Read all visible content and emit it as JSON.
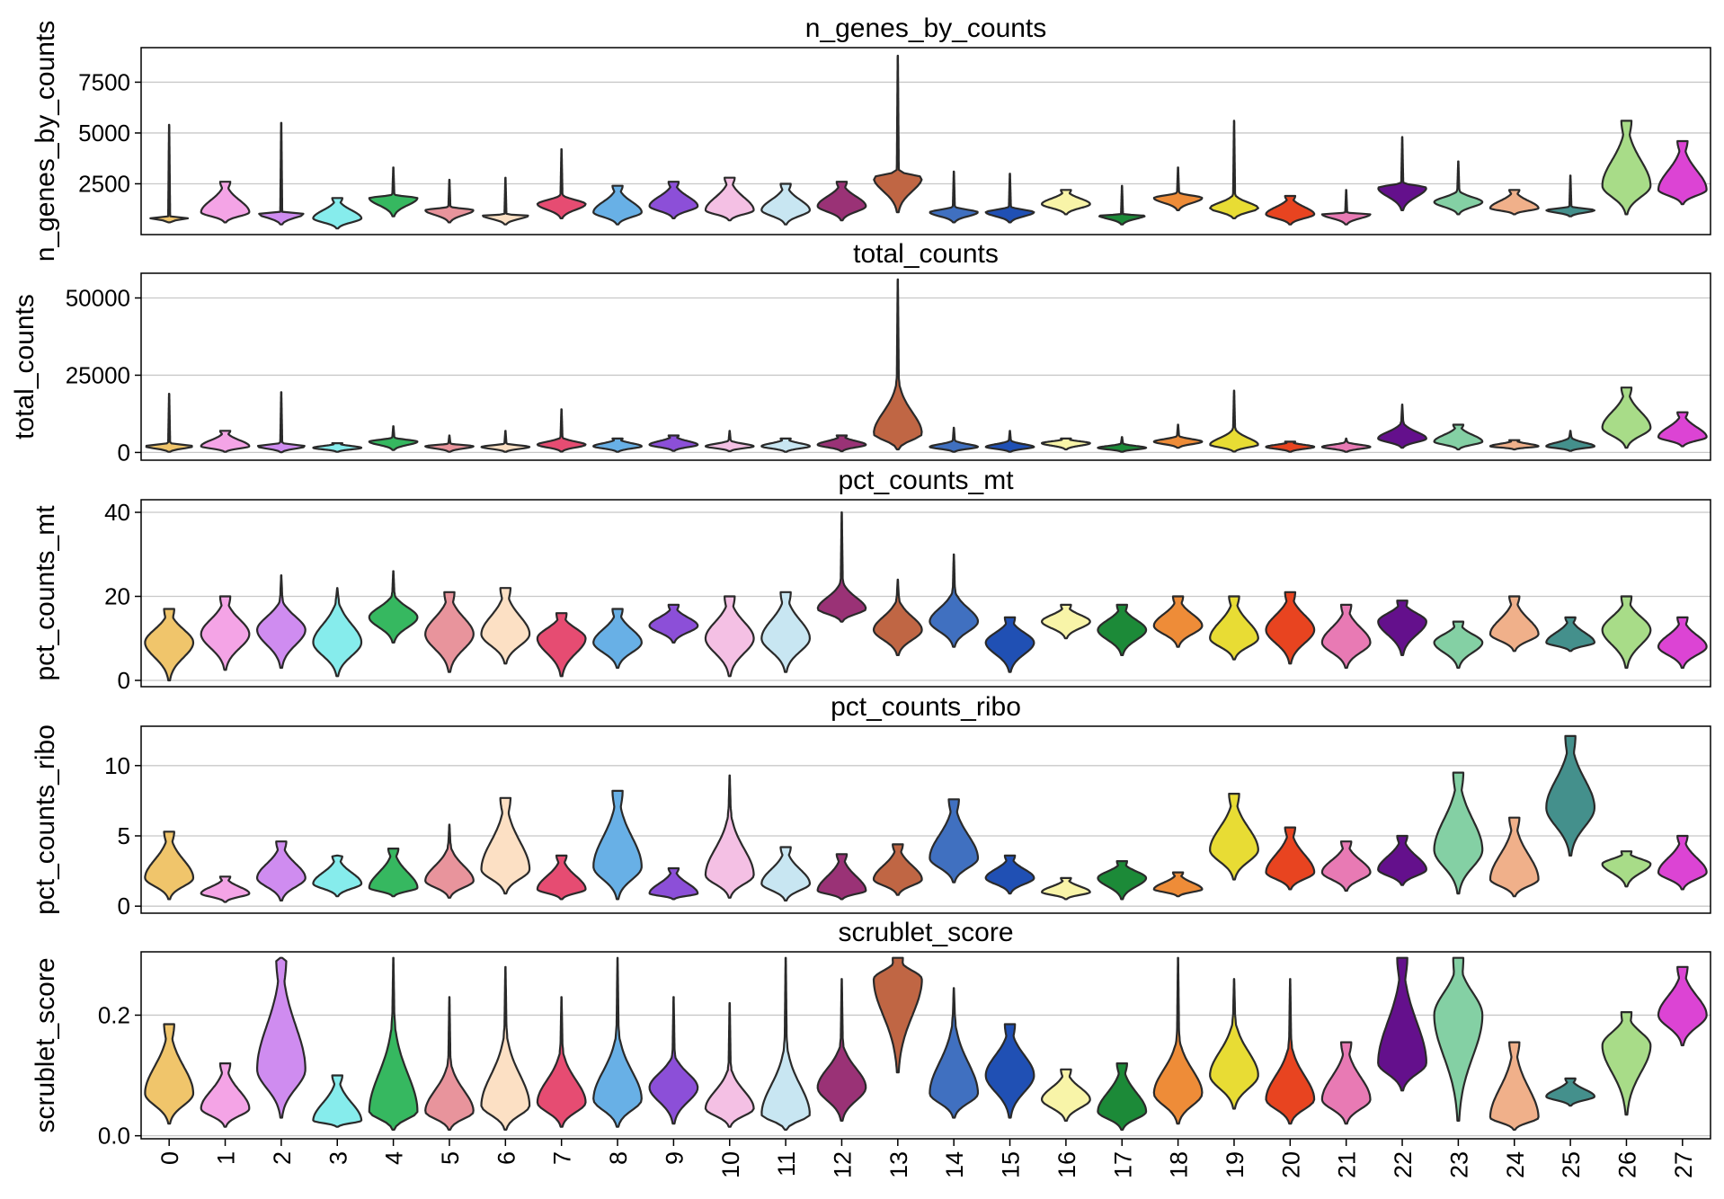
{
  "chart_data": {
    "type": "violin",
    "categories": [
      "0",
      "1",
      "2",
      "3",
      "4",
      "5",
      "6",
      "7",
      "8",
      "9",
      "10",
      "11",
      "12",
      "13",
      "14",
      "15",
      "16",
      "17",
      "18",
      "19",
      "20",
      "21",
      "22",
      "23",
      "24",
      "25",
      "26",
      "27"
    ],
    "colors": [
      "#f0c56b",
      "#f4a4e6",
      "#cf8cf0",
      "#86ecec",
      "#36b860",
      "#e8949c",
      "#fce0c4",
      "#e64c72",
      "#68b0e6",
      "#8c4fd8",
      "#f4c0e4",
      "#c8e6f2",
      "#9a3276",
      "#c06644",
      "#4070c0",
      "#2050b4",
      "#f8f4a8",
      "#1c8a38",
      "#ee8c38",
      "#e8dc34",
      "#e84420",
      "#e87ab4",
      "#64108c",
      "#84d0a4",
      "#f0b08a",
      "#44908c",
      "#a8dc88",
      "#dc44d4"
    ],
    "panels": [
      {
        "title": "n_genes_by_counts",
        "ylabel": "n_genes_by_counts",
        "ylim": [
          0,
          9200
        ],
        "yticks": [
          2500,
          5000,
          7500
        ],
        "ytick_labels": [
          "2500",
          "5000",
          "7500"
        ],
        "violins": [
          {
            "min": 600,
            "q": 1100,
            "max": 5400,
            "wmax": 900
          },
          {
            "min": 600,
            "q": 1100,
            "max": 2600,
            "wmax": 2600
          },
          {
            "min": 500,
            "q": 1100,
            "max": 5500,
            "wmax": 1100
          },
          {
            "min": 300,
            "q": 800,
            "max": 1800,
            "wmax": 1800
          },
          {
            "min": 900,
            "q": 1800,
            "max": 3300,
            "wmax": 2000
          },
          {
            "min": 600,
            "q": 1200,
            "max": 2700,
            "wmax": 1400
          },
          {
            "min": 500,
            "q": 1000,
            "max": 2800,
            "wmax": 1000
          },
          {
            "min": 800,
            "q": 1500,
            "max": 4200,
            "wmax": 2000
          },
          {
            "min": 500,
            "q": 1100,
            "max": 2400,
            "wmax": 2400
          },
          {
            "min": 800,
            "q": 1400,
            "max": 2600,
            "wmax": 2600
          },
          {
            "min": 700,
            "q": 1200,
            "max": 2800,
            "wmax": 2800
          },
          {
            "min": 500,
            "q": 1200,
            "max": 2500,
            "wmax": 2500
          },
          {
            "min": 700,
            "q": 1400,
            "max": 2600,
            "wmax": 2600
          },
          {
            "min": 1100,
            "q": 2800,
            "max": 8800,
            "wmax": 3200
          },
          {
            "min": 600,
            "q": 1100,
            "max": 3100,
            "wmax": 1400
          },
          {
            "min": 600,
            "q": 1100,
            "max": 3000,
            "wmax": 1400
          },
          {
            "min": 1000,
            "q": 1500,
            "max": 2200,
            "wmax": 2200
          },
          {
            "min": 500,
            "q": 1000,
            "max": 2400,
            "wmax": 1000
          },
          {
            "min": 1200,
            "q": 1800,
            "max": 3300,
            "wmax": 2100
          },
          {
            "min": 800,
            "q": 1300,
            "max": 5600,
            "wmax": 2000
          },
          {
            "min": 500,
            "q": 1000,
            "max": 1900,
            "wmax": 1900
          },
          {
            "min": 500,
            "q": 1000,
            "max": 2200,
            "wmax": 1100
          },
          {
            "min": 1200,
            "q": 2300,
            "max": 4800,
            "wmax": 2600
          },
          {
            "min": 1000,
            "q": 1600,
            "max": 3600,
            "wmax": 2200
          },
          {
            "min": 1000,
            "q": 1300,
            "max": 2200,
            "wmax": 2200
          },
          {
            "min": 900,
            "q": 1200,
            "max": 2900,
            "wmax": 1400
          },
          {
            "min": 1000,
            "q": 2400,
            "max": 5600,
            "wmax": 5600
          },
          {
            "min": 1500,
            "q": 2200,
            "max": 4600,
            "wmax": 4600
          }
        ]
      },
      {
        "title": "total_counts",
        "ylabel": "total_counts",
        "ylim": [
          -2500,
          58000
        ],
        "yticks": [
          0,
          25000,
          50000
        ],
        "ytick_labels": [
          "0",
          "25000",
          "50000"
        ],
        "violins": [
          {
            "min": 200,
            "q": 2000,
            "max": 19000,
            "wmax": 3200
          },
          {
            "min": 200,
            "q": 2000,
            "max": 7000,
            "wmax": 7000
          },
          {
            "min": 100,
            "q": 2000,
            "max": 19500,
            "wmax": 3200
          },
          {
            "min": 200,
            "q": 1500,
            "max": 3000,
            "wmax": 3000
          },
          {
            "min": 800,
            "q": 3500,
            "max": 8500,
            "wmax": 5000
          },
          {
            "min": 200,
            "q": 2000,
            "max": 5500,
            "wmax": 3000
          },
          {
            "min": 200,
            "q": 1800,
            "max": 7000,
            "wmax": 3000
          },
          {
            "min": 300,
            "q": 2500,
            "max": 14000,
            "wmax": 5000
          },
          {
            "min": 200,
            "q": 2000,
            "max": 4500,
            "wmax": 4500
          },
          {
            "min": 500,
            "q": 2500,
            "max": 5500,
            "wmax": 5500
          },
          {
            "min": 400,
            "q": 2000,
            "max": 7000,
            "wmax": 4000
          },
          {
            "min": 200,
            "q": 2000,
            "max": 4500,
            "wmax": 4500
          },
          {
            "min": 400,
            "q": 2500,
            "max": 5500,
            "wmax": 5500
          },
          {
            "min": 1000,
            "q": 6000,
            "max": 56000,
            "wmax": 24000
          },
          {
            "min": 200,
            "q": 1800,
            "max": 8000,
            "wmax": 4000
          },
          {
            "min": 200,
            "q": 1800,
            "max": 7000,
            "wmax": 4000
          },
          {
            "min": 1000,
            "q": 3000,
            "max": 4500,
            "wmax": 4500
          },
          {
            "min": 200,
            "q": 1500,
            "max": 5000,
            "wmax": 3000
          },
          {
            "min": 1500,
            "q": 3500,
            "max": 9000,
            "wmax": 5500
          },
          {
            "min": 300,
            "q": 2500,
            "max": 20000,
            "wmax": 8000
          },
          {
            "min": 200,
            "q": 1800,
            "max": 3500,
            "wmax": 3500
          },
          {
            "min": 200,
            "q": 1800,
            "max": 4500,
            "wmax": 3500
          },
          {
            "min": 1500,
            "q": 4500,
            "max": 15500,
            "wmax": 10000
          },
          {
            "min": 1000,
            "q": 3500,
            "max": 9000,
            "wmax": 9000
          },
          {
            "min": 1000,
            "q": 2000,
            "max": 4000,
            "wmax": 4000
          },
          {
            "min": 500,
            "q": 2000,
            "max": 7000,
            "wmax": 5000
          },
          {
            "min": 1500,
            "q": 8000,
            "max": 21000,
            "wmax": 21000
          },
          {
            "min": 2000,
            "q": 5000,
            "max": 13000,
            "wmax": 13000
          }
        ]
      },
      {
        "title": "pct_counts_mt",
        "ylabel": "pct_counts_mt",
        "ylim": [
          -1.5,
          43
        ],
        "yticks": [
          0,
          20,
          40
        ],
        "ytick_labels": [
          "0",
          "20",
          "40"
        ],
        "violins": [
          {
            "min": 0,
            "q": 9,
            "max": 17,
            "wmax": 17
          },
          {
            "min": 2.5,
            "q": 11,
            "max": 20,
            "wmax": 20
          },
          {
            "min": 3,
            "q": 12,
            "max": 25,
            "wmax": 20
          },
          {
            "min": 1,
            "q": 9,
            "max": 22,
            "wmax": 20
          },
          {
            "min": 9,
            "q": 15,
            "max": 26,
            "wmax": 21
          },
          {
            "min": 2,
            "q": 11,
            "max": 21,
            "wmax": 21
          },
          {
            "min": 4,
            "q": 11,
            "max": 22,
            "wmax": 22
          },
          {
            "min": 1,
            "q": 10,
            "max": 16,
            "wmax": 16
          },
          {
            "min": 3,
            "q": 9,
            "max": 17,
            "wmax": 17
          },
          {
            "min": 9,
            "q": 13,
            "max": 18,
            "wmax": 18
          },
          {
            "min": 1,
            "q": 10,
            "max": 20,
            "wmax": 20
          },
          {
            "min": 2,
            "q": 10,
            "max": 21,
            "wmax": 21
          },
          {
            "min": 14,
            "q": 17,
            "max": 40,
            "wmax": 24
          },
          {
            "min": 6,
            "q": 12,
            "max": 24,
            "wmax": 20
          },
          {
            "min": 8,
            "q": 14,
            "max": 30,
            "wmax": 22
          },
          {
            "min": 2,
            "q": 9,
            "max": 15,
            "wmax": 15
          },
          {
            "min": 10,
            "q": 14,
            "max": 18,
            "wmax": 18
          },
          {
            "min": 6,
            "q": 12,
            "max": 18,
            "wmax": 18
          },
          {
            "min": 8,
            "q": 13,
            "max": 20,
            "wmax": 20
          },
          {
            "min": 5,
            "q": 10,
            "max": 20,
            "wmax": 20
          },
          {
            "min": 4,
            "q": 12,
            "max": 21,
            "wmax": 21
          },
          {
            "min": 3,
            "q": 9,
            "max": 18,
            "wmax": 18
          },
          {
            "min": 6,
            "q": 14,
            "max": 19,
            "wmax": 19
          },
          {
            "min": 3,
            "q": 9,
            "max": 14,
            "wmax": 14
          },
          {
            "min": 7,
            "q": 11,
            "max": 20,
            "wmax": 20
          },
          {
            "min": 7,
            "q": 9,
            "max": 15,
            "wmax": 15
          },
          {
            "min": 3,
            "q": 12,
            "max": 20,
            "wmax": 20
          },
          {
            "min": 3,
            "q": 8,
            "max": 15,
            "wmax": 15
          }
        ]
      },
      {
        "title": "pct_counts_ribo",
        "ylabel": "pct_counts_ribo",
        "ylim": [
          -0.5,
          12.8
        ],
        "yticks": [
          0,
          5,
          10
        ],
        "ytick_labels": [
          "0",
          "5",
          "10"
        ],
        "violins": [
          {
            "min": 0.5,
            "q": 2,
            "max": 5.3,
            "wmax": 5.3
          },
          {
            "min": 0.3,
            "q": 0.9,
            "max": 2.1,
            "wmax": 2.1
          },
          {
            "min": 0.4,
            "q": 2,
            "max": 4.6,
            "wmax": 4.6
          },
          {
            "min": 0.7,
            "q": 1.6,
            "max": 3.6,
            "wmax": 3.6
          },
          {
            "min": 0.7,
            "q": 1.3,
            "max": 4.1,
            "wmax": 4.1
          },
          {
            "min": 0.6,
            "q": 1.8,
            "max": 5.8,
            "wmax": 4.5
          },
          {
            "min": 0.9,
            "q": 2.6,
            "max": 7.7,
            "wmax": 7.7
          },
          {
            "min": 0.5,
            "q": 1.2,
            "max": 3.6,
            "wmax": 3.6
          },
          {
            "min": 0.5,
            "q": 2.8,
            "max": 8.2,
            "wmax": 8.2
          },
          {
            "min": 0.5,
            "q": 0.9,
            "max": 2.7,
            "wmax": 2.7
          },
          {
            "min": 0.6,
            "q": 2.2,
            "max": 9.3,
            "wmax": 7
          },
          {
            "min": 0.4,
            "q": 1.6,
            "max": 4.2,
            "wmax": 4.2
          },
          {
            "min": 0.5,
            "q": 1.1,
            "max": 3.7,
            "wmax": 3.7
          },
          {
            "min": 0.8,
            "q": 1.9,
            "max": 4.4,
            "wmax": 4.4
          },
          {
            "min": 1.7,
            "q": 3.4,
            "max": 7.6,
            "wmax": 7.6
          },
          {
            "min": 0.9,
            "q": 2,
            "max": 3.6,
            "wmax": 3.6
          },
          {
            "min": 0.5,
            "q": 1,
            "max": 2,
            "wmax": 2
          },
          {
            "min": 0.5,
            "q": 2,
            "max": 3.2,
            "wmax": 3.2
          },
          {
            "min": 0.7,
            "q": 1.2,
            "max": 2.4,
            "wmax": 2.4
          },
          {
            "min": 1.9,
            "q": 4,
            "max": 8,
            "wmax": 8
          },
          {
            "min": 1.2,
            "q": 2.4,
            "max": 5.6,
            "wmax": 5.6
          },
          {
            "min": 1.1,
            "q": 2.4,
            "max": 4.6,
            "wmax": 4.6
          },
          {
            "min": 1.5,
            "q": 2.6,
            "max": 5,
            "wmax": 5
          },
          {
            "min": 0.9,
            "q": 4,
            "max": 9.5,
            "wmax": 9.5
          },
          {
            "min": 0.7,
            "q": 1.9,
            "max": 6.3,
            "wmax": 6.3
          },
          {
            "min": 3.6,
            "q": 7,
            "max": 12.1,
            "wmax": 12.1
          },
          {
            "min": 1.4,
            "q": 3,
            "max": 3.9,
            "wmax": 3.9
          },
          {
            "min": 1.2,
            "q": 2.4,
            "max": 5,
            "wmax": 5
          }
        ]
      },
      {
        "title": "scrublet_score",
        "ylabel": "scrublet_score",
        "ylim": [
          -0.005,
          0.305
        ],
        "yticks": [
          0.0,
          0.2
        ],
        "ytick_labels": [
          "0.0",
          "0.2"
        ],
        "violins": [
          {
            "min": 0.02,
            "q": 0.07,
            "max": 0.185,
            "wmax": 0.185
          },
          {
            "min": 0.015,
            "q": 0.045,
            "max": 0.12,
            "wmax": 0.12
          },
          {
            "min": 0.03,
            "q": 0.11,
            "max": 0.295,
            "wmax": 0.295
          },
          {
            "min": 0.015,
            "q": 0.025,
            "max": 0.1,
            "wmax": 0.1
          },
          {
            "min": 0.01,
            "q": 0.04,
            "max": 0.295,
            "wmax": 0.2
          },
          {
            "min": 0.01,
            "q": 0.04,
            "max": 0.23,
            "wmax": 0.13
          },
          {
            "min": 0.01,
            "q": 0.05,
            "max": 0.28,
            "wmax": 0.18
          },
          {
            "min": 0.015,
            "q": 0.055,
            "max": 0.23,
            "wmax": 0.15
          },
          {
            "min": 0.015,
            "q": 0.06,
            "max": 0.295,
            "wmax": 0.18
          },
          {
            "min": 0.02,
            "q": 0.08,
            "max": 0.23,
            "wmax": 0.14
          },
          {
            "min": 0.015,
            "q": 0.045,
            "max": 0.22,
            "wmax": 0.12
          },
          {
            "min": 0.01,
            "q": 0.035,
            "max": 0.295,
            "wmax": 0.16
          },
          {
            "min": 0.025,
            "q": 0.08,
            "max": 0.26,
            "wmax": 0.16
          },
          {
            "min": 0.105,
            "q": 0.26,
            "max": 0.295,
            "wmax": 0.295
          },
          {
            "min": 0.03,
            "q": 0.07,
            "max": 0.245,
            "wmax": 0.2
          },
          {
            "min": 0.03,
            "q": 0.1,
            "max": 0.185,
            "wmax": 0.185
          },
          {
            "min": 0.025,
            "q": 0.06,
            "max": 0.11,
            "wmax": 0.11
          },
          {
            "min": 0.01,
            "q": 0.04,
            "max": 0.12,
            "wmax": 0.12
          },
          {
            "min": 0.02,
            "q": 0.07,
            "max": 0.295,
            "wmax": 0.17
          },
          {
            "min": 0.045,
            "q": 0.1,
            "max": 0.26,
            "wmax": 0.2
          },
          {
            "min": 0.02,
            "q": 0.06,
            "max": 0.26,
            "wmax": 0.16
          },
          {
            "min": 0.02,
            "q": 0.06,
            "max": 0.155,
            "wmax": 0.155
          },
          {
            "min": 0.075,
            "q": 0.12,
            "max": 0.295,
            "wmax": 0.295
          },
          {
            "min": 0.025,
            "q": 0.2,
            "max": 0.295,
            "wmax": 0.295
          },
          {
            "min": 0.01,
            "q": 0.03,
            "max": 0.155,
            "wmax": 0.155
          },
          {
            "min": 0.05,
            "q": 0.065,
            "max": 0.095,
            "wmax": 0.095
          },
          {
            "min": 0.035,
            "q": 0.15,
            "max": 0.205,
            "wmax": 0.205
          },
          {
            "min": 0.15,
            "q": 0.2,
            "max": 0.28,
            "wmax": 0.28
          }
        ]
      }
    ]
  }
}
